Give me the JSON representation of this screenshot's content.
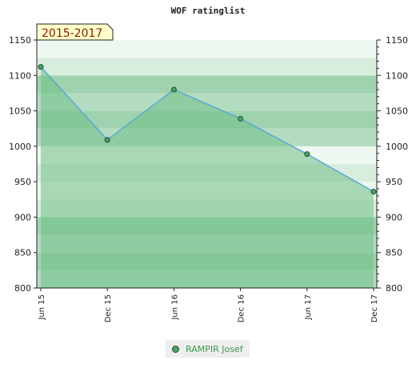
{
  "colors": {
    "band_light": "#d9eddf",
    "band_mid": "#b4dcc0",
    "band_dark": "#9fd2ae",
    "area_fill": "#6fbf87",
    "line": "#5aa7d6",
    "marker_fill": "#4ca36a",
    "marker_stroke": "#1b4d2a",
    "badge_bg": "#ffffcc",
    "badge_text": "#8b1a0a"
  },
  "chart_data": {
    "type": "area",
    "title": "WOF ratinglist",
    "period_badge": "2015-2017",
    "categories": [
      "Jun 15",
      "Dec 15",
      "Jun 16",
      "Dec 16",
      "Jun 17",
      "Dec 17"
    ],
    "series": [
      {
        "name": "RAMPIR Josef",
        "values": [
          1112,
          1009,
          1080,
          1039,
          989,
          936
        ]
      }
    ],
    "ylim": [
      800,
      1150
    ],
    "yticks": [
      800,
      850,
      900,
      950,
      1000,
      1050,
      1100,
      1150
    ],
    "grid": true,
    "legend_position": "bottom-center"
  }
}
